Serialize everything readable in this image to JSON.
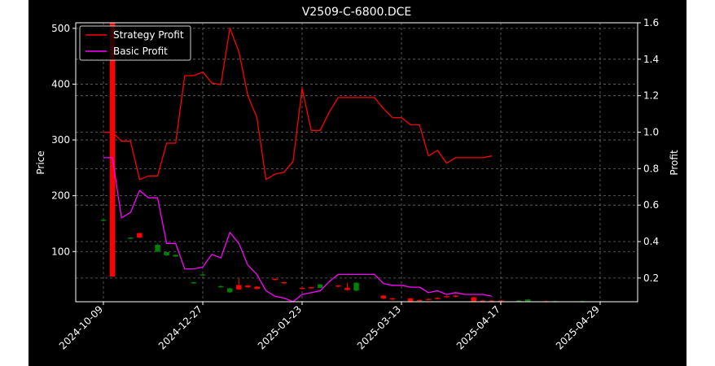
{
  "chart_data": {
    "type": "line",
    "title": "V2509-C-6800.DCE",
    "ylabel_left": "Price",
    "ylabel_right": "Profit",
    "ylim_left": [
      10,
      510
    ],
    "yticks_left": [
      100,
      200,
      300,
      400,
      500
    ],
    "ylim_right": [
      0.07,
      1.6
    ],
    "yticks_right": [
      0.2,
      0.4,
      0.6,
      0.8,
      1.0,
      1.2,
      1.4,
      1.6
    ],
    "n_points": 55,
    "xtick_positions": [
      0,
      11,
      22,
      33,
      44,
      55
    ],
    "xtick_labels": [
      "2024-10-09",
      "2024-12-27",
      "2025-01-23",
      "2025-03-13",
      "2025-04-17",
      "2025-04-29"
    ],
    "grid": true,
    "legend_position": "top-left",
    "colors": {
      "up": "#ff0000",
      "down": "#008000",
      "strategy": "#ff0000",
      "basic": "#ff00ff",
      "background": "#000000",
      "foreground": "#ffffff"
    },
    "series": [
      {
        "name": "Strategy Profit",
        "color": "#ff0000",
        "axis": "right",
        "values": [
          1.0,
          1.0,
          0.95,
          0.95,
          0.74,
          0.76,
          0.76,
          0.94,
          0.94,
          1.31,
          1.31,
          1.33,
          1.27,
          1.26,
          1.57,
          1.44,
          1.2,
          1.08,
          0.74,
          0.77,
          0.78,
          0.84,
          1.24,
          1.01,
          1.01,
          1.11,
          1.19,
          1.19,
          1.19,
          1.19,
          1.19,
          1.13,
          1.08,
          1.08,
          1.04,
          1.04,
          0.87,
          0.9,
          0.83,
          0.86,
          0.86,
          0.86,
          0.86,
          0.87
        ]
      },
      {
        "name": "Basic Profit",
        "color": "#ff00ff",
        "axis": "right",
        "values": [
          0.86,
          0.86,
          0.53,
          0.56,
          0.68,
          0.64,
          0.64,
          0.39,
          0.39,
          0.25,
          0.25,
          0.26,
          0.33,
          0.31,
          0.45,
          0.39,
          0.27,
          0.22,
          0.13,
          0.1,
          0.09,
          0.07,
          0.11,
          0.12,
          0.13,
          0.18,
          0.22,
          0.22,
          0.22,
          0.22,
          0.22,
          0.17,
          0.16,
          0.16,
          0.15,
          0.15,
          0.12,
          0.13,
          0.11,
          0.12,
          0.11,
          0.11,
          0.11,
          0.1
        ]
      }
    ],
    "candles": [
      {
        "i": 0,
        "open": 157,
        "close": 155,
        "high": 158,
        "low": 154
      },
      {
        "i": 1,
        "open": 55,
        "close": 510,
        "high": 510,
        "low": 55
      },
      {
        "i": 3,
        "open": 125,
        "close": 123,
        "high": 126,
        "low": 122
      },
      {
        "i": 4,
        "open": 125,
        "close": 133,
        "high": 134,
        "low": 124
      },
      {
        "i": 6,
        "open": 112,
        "close": 100,
        "high": 114,
        "low": 99
      },
      {
        "i": 7,
        "open": 99,
        "close": 93,
        "high": 100,
        "low": 92
      },
      {
        "i": 8,
        "open": 94,
        "close": 91,
        "high": 95,
        "low": 90
      },
      {
        "i": 10,
        "open": 45,
        "close": 43,
        "high": 46,
        "low": 42
      },
      {
        "i": 11,
        "open": 59,
        "close": 57,
        "high": 60,
        "low": 56
      },
      {
        "i": 13,
        "open": 38,
        "close": 36,
        "high": 39,
        "low": 35
      },
      {
        "i": 14,
        "open": 34,
        "close": 27,
        "high": 35,
        "low": 26
      },
      {
        "i": 15,
        "open": 32,
        "close": 40,
        "high": 52,
        "low": 31
      },
      {
        "i": 16,
        "open": 36,
        "close": 39,
        "high": 40,
        "low": 35
      },
      {
        "i": 17,
        "open": 33,
        "close": 37,
        "high": 38,
        "low": 32
      },
      {
        "i": 19,
        "open": 49,
        "close": 51,
        "high": 52,
        "low": 48
      },
      {
        "i": 20,
        "open": 43,
        "close": 45,
        "high": 46,
        "low": 42
      },
      {
        "i": 22,
        "open": 33,
        "close": 35,
        "high": 36,
        "low": 32
      },
      {
        "i": 23,
        "open": 34,
        "close": 36,
        "high": 37,
        "low": 33
      },
      {
        "i": 24,
        "open": 41,
        "close": 35,
        "high": 42,
        "low": 34
      },
      {
        "i": 26,
        "open": 37,
        "close": 39,
        "high": 40,
        "low": 36
      },
      {
        "i": 27,
        "open": 31,
        "close": 35,
        "high": 44,
        "low": 30
      },
      {
        "i": 28,
        "open": 44,
        "close": 30,
        "high": 45,
        "low": 29
      },
      {
        "i": 31,
        "open": 16,
        "close": 21,
        "high": 22,
        "low": 15
      },
      {
        "i": 32,
        "open": 14,
        "close": 16,
        "high": 17,
        "low": 13
      },
      {
        "i": 34,
        "open": 10,
        "close": 16,
        "high": 17,
        "low": 9
      },
      {
        "i": 35,
        "open": 12,
        "close": 13,
        "high": 14,
        "low": 11
      },
      {
        "i": 36,
        "open": 14,
        "close": 15,
        "high": 16,
        "low": 13
      },
      {
        "i": 37,
        "open": 15,
        "close": 17,
        "high": 18,
        "low": 14
      },
      {
        "i": 38,
        "open": 18,
        "close": 20,
        "high": 21,
        "low": 17
      },
      {
        "i": 39,
        "open": 19,
        "close": 21,
        "high": 22,
        "low": 18
      },
      {
        "i": 41,
        "open": 11,
        "close": 18,
        "high": 19,
        "low": 10
      },
      {
        "i": 42,
        "open": 10,
        "close": 12,
        "high": 13,
        "low": 9
      },
      {
        "i": 43,
        "open": 10,
        "close": 12,
        "high": 13,
        "low": 9
      },
      {
        "i": 44,
        "open": 11,
        "close": 12,
        "high": 13,
        "low": 10
      },
      {
        "i": 46,
        "open": 12,
        "close": 11,
        "high": 13,
        "low": 10
      },
      {
        "i": 47,
        "open": 14,
        "close": 11,
        "high": 15,
        "low": 10
      },
      {
        "i": 49,
        "open": 10,
        "close": 11,
        "high": 12,
        "low": 9
      },
      {
        "i": 50,
        "open": 11,
        "close": 10,
        "high": 12,
        "low": 9
      },
      {
        "i": 53,
        "open": 11,
        "close": 10,
        "high": 12,
        "low": 9
      }
    ]
  }
}
